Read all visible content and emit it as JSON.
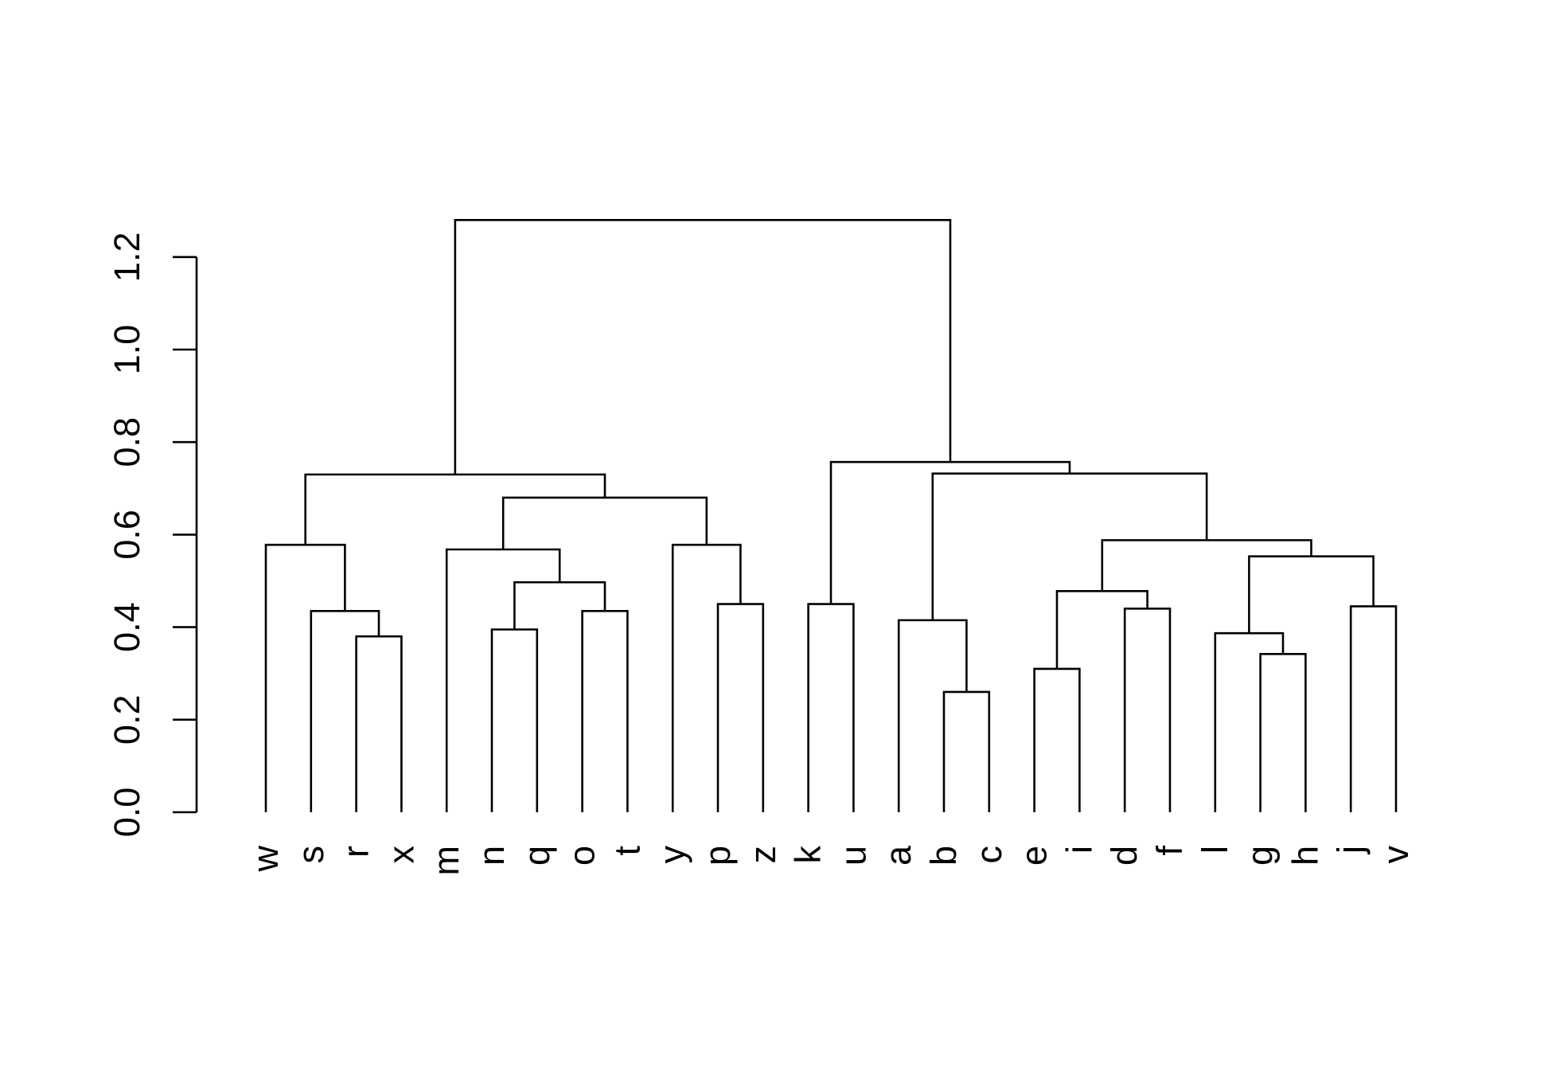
{
  "chart_data": {
    "type": "dendrogram",
    "title": "",
    "xlabel": "",
    "ylabel": "",
    "ylim": [
      0,
      1.28
    ],
    "yticks": [
      0.0,
      0.2,
      0.4,
      0.6,
      0.8,
      1.0,
      1.2
    ],
    "ytick_labels": [
      "0.0",
      "0.2",
      "0.4",
      "0.6",
      "0.8",
      "1.0",
      "1.2"
    ],
    "leaves": [
      "w",
      "s",
      "r",
      "x",
      "m",
      "n",
      "q",
      "o",
      "t",
      "y",
      "p",
      "z",
      "k",
      "u",
      "a",
      "b",
      "c",
      "e",
      "i",
      "d",
      "f",
      "l",
      "g",
      "h",
      "j",
      "v"
    ],
    "merges": [
      {
        "left": "r",
        "right": "x",
        "height": 0.38
      },
      {
        "left": "s",
        "right": 1,
        "height": 0.435
      },
      {
        "left": "w",
        "right": 2,
        "height": 0.578
      },
      {
        "left": "n",
        "right": "q",
        "height": 0.395
      },
      {
        "left": "o",
        "right": "t",
        "height": 0.435
      },
      {
        "left": 4,
        "right": 5,
        "height": 0.497
      },
      {
        "left": "m",
        "right": 6,
        "height": 0.568
      },
      {
        "left": "p",
        "right": "z",
        "height": 0.45
      },
      {
        "left": "y",
        "right": 8,
        "height": 0.578
      },
      {
        "left": 7,
        "right": 9,
        "height": 0.68
      },
      {
        "left": 3,
        "right": 10,
        "height": 0.73
      },
      {
        "left": "k",
        "right": "u",
        "height": 0.45
      },
      {
        "left": "b",
        "right": "c",
        "height": 0.26
      },
      {
        "left": "a",
        "right": 13,
        "height": 0.415
      },
      {
        "left": "e",
        "right": "i",
        "height": 0.31
      },
      {
        "left": "d",
        "right": "f",
        "height": 0.44
      },
      {
        "left": 15,
        "right": 16,
        "height": 0.478
      },
      {
        "left": "g",
        "right": "h",
        "height": 0.342
      },
      {
        "left": "l",
        "right": 18,
        "height": 0.387
      },
      {
        "left": "j",
        "right": "v",
        "height": 0.445
      },
      {
        "left": 19,
        "right": 20,
        "height": 0.553
      },
      {
        "left": 17,
        "right": 21,
        "height": 0.588
      },
      {
        "left": 14,
        "right": 22,
        "height": 0.732
      },
      {
        "left": 12,
        "right": 23,
        "height": 0.757
      },
      {
        "left": 11,
        "right": 24,
        "height": 1.28
      }
    ]
  }
}
